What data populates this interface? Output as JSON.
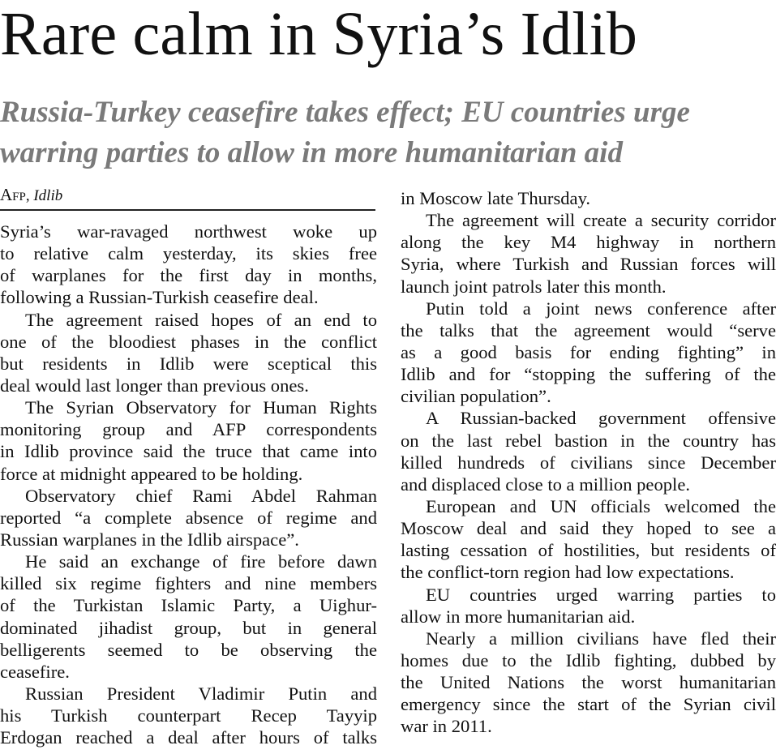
{
  "headline": "Rare calm in Syria’s Idlib",
  "subheadline": [
    "Russia-Turkey ceasefire takes effect; EU countries urge",
    "warring parties to allow in more humanitarian aid"
  ],
  "byline": {
    "agency": "Afp",
    "place": "Idlib"
  },
  "left_column": [
    {
      "indent": false,
      "lines": [
        "Syria’s war-ravaged northwest woke up",
        "to relative calm yesterday, its skies free",
        "of warplanes for the first day in months,",
        "following a Russian-Turkish ceasefire deal."
      ]
    },
    {
      "indent": true,
      "lines": [
        "The agreement raised hopes of an end to",
        "one of the bloodiest phases in the conflict",
        "but residents in Idlib were sceptical this",
        "deal would last longer than previous ones."
      ]
    },
    {
      "indent": true,
      "lines": [
        "The Syrian Observatory for Human Rights",
        "monitoring group and AFP correspondents",
        "in Idlib province said the truce that came into",
        "force at midnight appeared to be holding."
      ]
    },
    {
      "indent": true,
      "lines": [
        "Observatory chief Rami Abdel Rahman",
        "reported “a complete absence of regime and",
        "Russian warplanes in the Idlib airspace”."
      ]
    },
    {
      "indent": true,
      "lines": [
        "He said an exchange of fire before dawn",
        "killed six regime fighters and nine members",
        "of the Turkistan Islamic Party, a Uighur-",
        "dominated jihadist group, but in general",
        "belligerents seemed to be observing the",
        "ceasefire."
      ]
    },
    {
      "indent": true,
      "continues": true,
      "lines": [
        "Russian President Vladimir Putin and",
        "his Turkish counterpart Recep Tayyip",
        "Erdogan reached a deal after hours of talks"
      ]
    }
  ],
  "right_column": [
    {
      "indent": false,
      "lines": [
        "in Moscow late Thursday."
      ]
    },
    {
      "indent": true,
      "lines": [
        "The agreement will create a security corridor",
        "along the key M4 highway in northern",
        "Syria, where Turkish and Russian forces will",
        "launch joint patrols later this month."
      ]
    },
    {
      "indent": true,
      "lines": [
        "Putin told a joint news conference after",
        "the talks that the agreement would “serve",
        "as a good basis for ending fighting” in",
        "Idlib and for “stopping the suffering of the",
        "civilian population”."
      ]
    },
    {
      "indent": true,
      "lines": [
        "A Russian-backed government offensive",
        "on the last rebel bastion in the country has",
        "killed hundreds of civilians since December",
        "and displaced close to a million people."
      ]
    },
    {
      "indent": true,
      "lines": [
        "European and UN officials welcomed the",
        "Moscow deal and said they hoped to see a",
        "lasting cessation of hostilities, but residents of",
        "the conflict-torn region had low expectations."
      ]
    },
    {
      "indent": true,
      "lines": [
        "EU countries urged warring parties to",
        "allow in more humanitarian aid."
      ]
    },
    {
      "indent": true,
      "lines": [
        "Nearly a million civilians have fled their",
        "homes due to the Idlib fighting, dubbed by",
        "the United Nations the worst humanitarian",
        "emergency since the start of the Syrian civil",
        "war in 2011."
      ]
    }
  ]
}
